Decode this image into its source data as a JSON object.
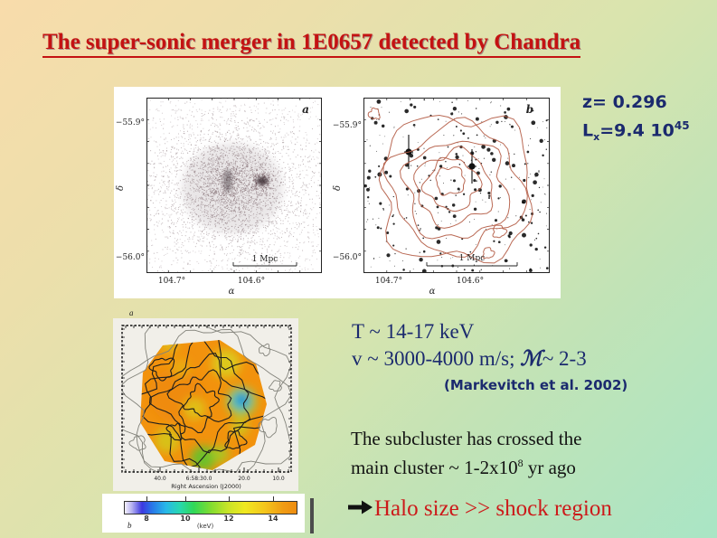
{
  "title": "The super-sonic merger in 1E0657 detected by Chandra",
  "redshift_info": {
    "line1": "z= 0.296",
    "l_base": "L",
    "l_sub": "x",
    "l_mid": "=9.4 10",
    "l_exp": "45"
  },
  "figure_top": {
    "panel_a": {
      "label": "a",
      "y_tick_top": "−55.9°",
      "y_tick_bottom": "−56.0°",
      "x_tick_left": "104.7°",
      "x_tick_right": "104.6°",
      "x_axis": "α",
      "y_axis": "δ",
      "scale": "1 Mpc"
    },
    "panel_b": {
      "label": "b",
      "y_tick_top": "−55.9°",
      "y_tick_bottom": "−56.0°",
      "x_tick_left": "104.7°",
      "x_tick_right": "104.6°",
      "x_axis": "α",
      "y_axis": "δ",
      "scale": "1 Mpc"
    }
  },
  "temp_map": {
    "panel_label": "a",
    "x_ticks": [
      "40.0",
      "6:58:30.0",
      "20.0",
      "10.0"
    ],
    "x_axis_label": "Right Ascension (J2000)"
  },
  "colorbar": {
    "panel_label": "b",
    "ticks": [
      "8",
      "10",
      "12",
      "14"
    ],
    "unit": "(keV)"
  },
  "physics": {
    "line1": "T ~ 14-17 keV",
    "line2_pre": "v ~ 3000-4000 m/s; ",
    "mach_symbol": "ℳ",
    "line2_post": "~ 2-3",
    "citation": "(Markevitch et al. 2002)"
  },
  "subcluster": {
    "line1": "The subcluster has crossed the",
    "line2_pre": "main cluster ~ 1-2x10",
    "line2_exp": "8",
    "line2_post": " yr ago"
  },
  "conclusion": {
    "text": "Halo size >> shock region"
  },
  "colors": {
    "title_red": "#c41212",
    "navy": "#1b2a6e",
    "conclusion_red": "#cc1a1a"
  }
}
